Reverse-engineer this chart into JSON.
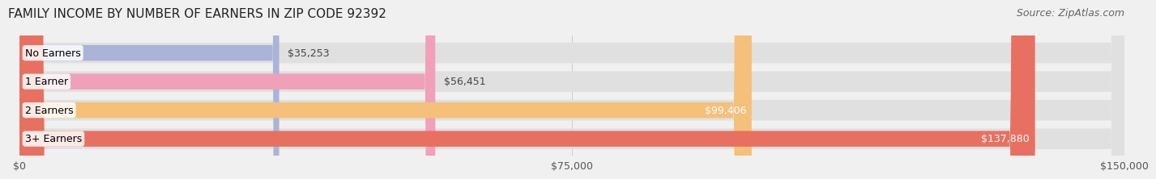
{
  "title": "FAMILY INCOME BY NUMBER OF EARNERS IN ZIP CODE 92392",
  "source": "Source: ZipAtlas.com",
  "categories": [
    "No Earners",
    "1 Earner",
    "2 Earners",
    "3+ Earners"
  ],
  "values": [
    35253,
    56451,
    99406,
    137880
  ],
  "bar_colors": [
    "#aab4d8",
    "#f0a0b8",
    "#f5c07a",
    "#e87060"
  ],
  "value_labels": [
    "$35,253",
    "$56,451",
    "$99,406",
    "$137,880"
  ],
  "xlim": [
    0,
    150000
  ],
  "xticks": [
    0,
    75000,
    150000
  ],
  "xtick_labels": [
    "$0",
    "$75,000",
    "$150,000"
  ],
  "background_color": "#f0f0f0",
  "bar_bg_color": "#e8e8e8",
  "title_fontsize": 11,
  "source_fontsize": 9,
  "label_fontsize": 9,
  "value_fontsize": 9,
  "tick_fontsize": 9
}
